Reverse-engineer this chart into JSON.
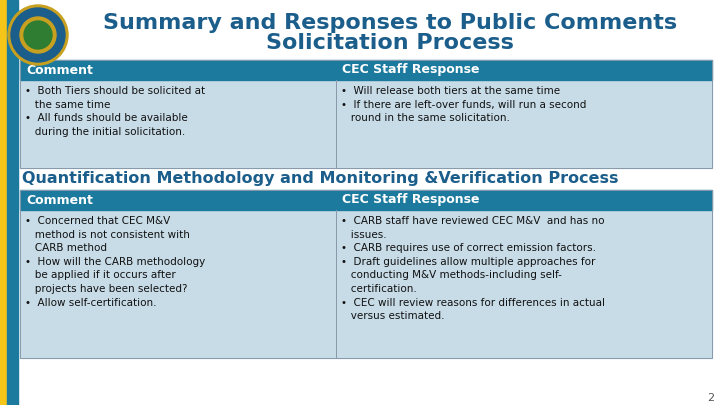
{
  "title_line1": "Summary and Responses to Public Comments",
  "title_line2": "Solicitation Process",
  "title_color": "#1B5E8B",
  "title_fontsize": 16,
  "background_color": "#FFFFFF",
  "header_bg_color": "#1B7A9E",
  "header_text_color": "#FFFFFF",
  "header_fontsize": 9,
  "cell_bg_color1": "#C8DCE8",
  "cell_bg_color2": "#C8DCE8",
  "body_fontsize": 7.5,
  "section2_title": "Quantification Methodology and Monitoring &Verification Process",
  "section2_title_color": "#1B5E8B",
  "section2_title_fontsize": 11.5,
  "col1_header": "Comment",
  "col2_header": "CEC Staff Response",
  "table1_comment": "•  Both Tiers should be solicited at\n   the same time\n•  All funds should be available\n   during the initial solicitation.",
  "table1_response": "•  Will release both tiers at the same time\n•  If there are left-over funds, will run a second\n   round in the same solicitation.",
  "table2_comment": "•  Concerned that CEC M&V\n   method is not consistent with\n   CARB method\n•  How will the CARB methodology\n   be applied if it occurs after\n   projects have been selected?\n•  Allow self-certification.",
  "table2_response": "•  CARB staff have reviewed CEC M&V  and has no\n   issues.\n•  CARB requires use of correct emission factors.\n•  Draft guidelines allow multiple approaches for\n   conducting M&V methods-including self-\n   certification.\n•  CEC will review reasons for differences in actual\n   versus estimated.",
  "left_stripe_color": "#F5C518",
  "left_stripe2_color": "#1B7A9E",
  "page_num": "2"
}
